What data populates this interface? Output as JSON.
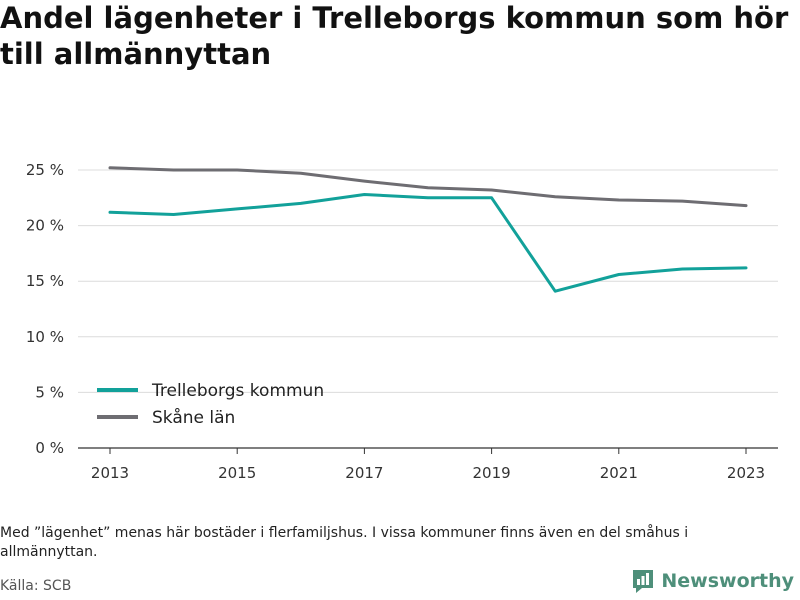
{
  "title": "Andel lägenheter i Trelleborgs kommun som hör till allmännyttan",
  "note": "Med ”lägenhet” menas här bostäder i flerfamiljshus. I vissa kommuner finns även en del småhus i allmännyttan.",
  "source": "Källa: SCB",
  "brand": {
    "name": "Newsworthy",
    "icon": "newsworthy-logo-icon",
    "color": "#4e8f7a"
  },
  "chart_data": {
    "type": "line",
    "title": "Andel lägenheter i Trelleborgs kommun som hör till allmännyttan",
    "xlabel": "",
    "ylabel": "",
    "x": [
      2013,
      2014,
      2015,
      2016,
      2017,
      2018,
      2019,
      2020,
      2021,
      2022,
      2023
    ],
    "xticks": [
      2013,
      2015,
      2017,
      2019,
      2021,
      2023
    ],
    "xticklabels": [
      "2013",
      "2015",
      "2017",
      "2019",
      "2021",
      "2023"
    ],
    "ylim": [
      0,
      25
    ],
    "yticks": [
      0,
      5,
      10,
      15,
      20,
      25
    ],
    "yticklabels": [
      "0 %",
      "5 %",
      "10 %",
      "15 %",
      "20 %",
      "25 %"
    ],
    "grid": "horizontal",
    "legend_position": "bottom-left",
    "series": [
      {
        "name": "Trelleborgs kommun",
        "color": "#12a19a",
        "values": [
          21.2,
          21.0,
          21.5,
          22.0,
          22.8,
          22.5,
          22.5,
          14.1,
          15.6,
          16.1,
          16.2
        ]
      },
      {
        "name": "Skåne län",
        "color": "#6e6d72",
        "values": [
          25.2,
          25.0,
          25.0,
          24.7,
          24.0,
          23.4,
          23.2,
          22.6,
          22.3,
          22.2,
          21.8
        ]
      }
    ]
  }
}
